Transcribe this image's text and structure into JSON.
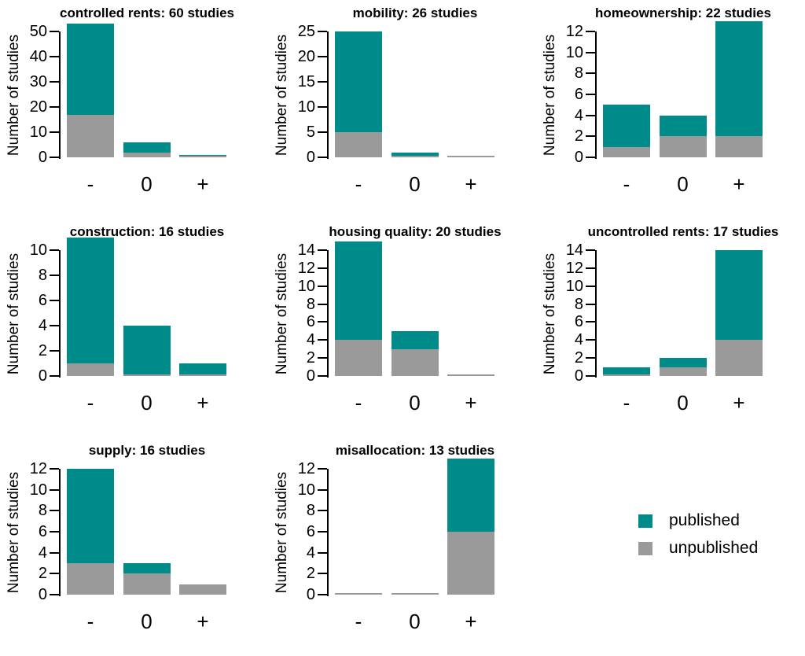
{
  "figure": {
    "ylabel": "Number of studies",
    "categories": [
      "-",
      "0",
      "+"
    ],
    "colors": {
      "published": "#008b8b",
      "unpublished": "#9a9a9a",
      "axis": "#000000"
    },
    "legend": {
      "position": "bottom-right",
      "items": [
        {
          "name": "published",
          "label": "published",
          "color": "#008b8b"
        },
        {
          "name": "unpublished",
          "label": "unpublished",
          "color": "#9a9a9a"
        }
      ]
    }
  },
  "chart_data": [
    {
      "type": "bar",
      "stacked": true,
      "title": "controlled rents: 60 studies",
      "ylabel": "Number of studies",
      "categories": [
        "-",
        "0",
        "+"
      ],
      "y_ticks": [
        0,
        10,
        20,
        30,
        40,
        50
      ],
      "ylim": [
        0,
        53
      ],
      "totals": [
        53,
        6,
        1
      ],
      "series": [
        {
          "name": "published",
          "values": [
            36,
            4,
            1
          ]
        },
        {
          "name": "unpublished",
          "values": [
            17,
            2,
            0
          ]
        }
      ]
    },
    {
      "type": "bar",
      "stacked": true,
      "title": "mobility: 26 studies",
      "ylabel": "Number of studies",
      "categories": [
        "-",
        "0",
        "+"
      ],
      "y_ticks": [
        0,
        5,
        10,
        15,
        20,
        25
      ],
      "ylim": [
        0,
        25
      ],
      "totals": [
        25,
        1,
        0
      ],
      "series": [
        {
          "name": "published",
          "values": [
            20,
            1,
            0
          ]
        },
        {
          "name": "unpublished",
          "values": [
            5,
            0,
            0
          ]
        }
      ]
    },
    {
      "type": "bar",
      "stacked": true,
      "title": "homeownership: 22 studies",
      "ylabel": "Number of studies",
      "categories": [
        "-",
        "0",
        "+"
      ],
      "y_ticks": [
        0,
        2,
        4,
        6,
        8,
        10,
        12
      ],
      "ylim": [
        0,
        13
      ],
      "totals": [
        5,
        4,
        13
      ],
      "series": [
        {
          "name": "published",
          "values": [
            4,
            2,
            11
          ]
        },
        {
          "name": "unpublished",
          "values": [
            1,
            2,
            2
          ]
        }
      ]
    },
    {
      "type": "bar",
      "stacked": true,
      "title": "construction: 16 studies",
      "ylabel": "Number of studies",
      "categories": [
        "-",
        "0",
        "+"
      ],
      "y_ticks": [
        0,
        2,
        4,
        6,
        8,
        10
      ],
      "ylim": [
        0,
        11
      ],
      "totals": [
        11,
        4,
        1
      ],
      "series": [
        {
          "name": "published",
          "values": [
            10,
            4,
            1
          ]
        },
        {
          "name": "unpublished",
          "values": [
            1,
            0,
            0
          ]
        }
      ]
    },
    {
      "type": "bar",
      "stacked": true,
      "title": "housing quality: 20 studies",
      "ylabel": "Number of studies",
      "categories": [
        "-",
        "0",
        "+"
      ],
      "y_ticks": [
        0,
        2,
        4,
        6,
        8,
        10,
        12,
        14
      ],
      "ylim": [
        0,
        15
      ],
      "totals": [
        15,
        5,
        0
      ],
      "series": [
        {
          "name": "published",
          "values": [
            11,
            2,
            0
          ]
        },
        {
          "name": "unpublished",
          "values": [
            4,
            3,
            0
          ]
        }
      ]
    },
    {
      "type": "bar",
      "stacked": true,
      "title": "uncontrolled rents: 17 studies",
      "ylabel": "Number of studies",
      "categories": [
        "-",
        "0",
        "+"
      ],
      "y_ticks": [
        0,
        2,
        4,
        6,
        8,
        10,
        12,
        14
      ],
      "ylim": [
        0,
        14
      ],
      "totals": [
        1,
        2,
        14
      ],
      "series": [
        {
          "name": "published",
          "values": [
            1,
            1,
            10
          ]
        },
        {
          "name": "unpublished",
          "values": [
            0,
            1,
            4
          ]
        }
      ]
    },
    {
      "type": "bar",
      "stacked": true,
      "title": "supply: 16 studies",
      "ylabel": "Number of studies",
      "categories": [
        "-",
        "0",
        "+"
      ],
      "y_ticks": [
        0,
        2,
        4,
        6,
        8,
        10,
        12
      ],
      "ylim": [
        0,
        12
      ],
      "totals": [
        12,
        3,
        1
      ],
      "series": [
        {
          "name": "published",
          "values": [
            9,
            1,
            0
          ]
        },
        {
          "name": "unpublished",
          "values": [
            3,
            2,
            1
          ]
        }
      ]
    },
    {
      "type": "bar",
      "stacked": true,
      "title": "misallocation: 13 studies",
      "ylabel": "Number of studies",
      "categories": [
        "-",
        "0",
        "+"
      ],
      "y_ticks": [
        0,
        2,
        4,
        6,
        8,
        10,
        12
      ],
      "ylim": [
        0,
        13
      ],
      "totals": [
        0,
        0,
        13
      ],
      "series": [
        {
          "name": "published",
          "values": [
            0,
            0,
            7
          ]
        },
        {
          "name": "unpublished",
          "values": [
            0,
            0,
            6
          ]
        }
      ]
    }
  ]
}
